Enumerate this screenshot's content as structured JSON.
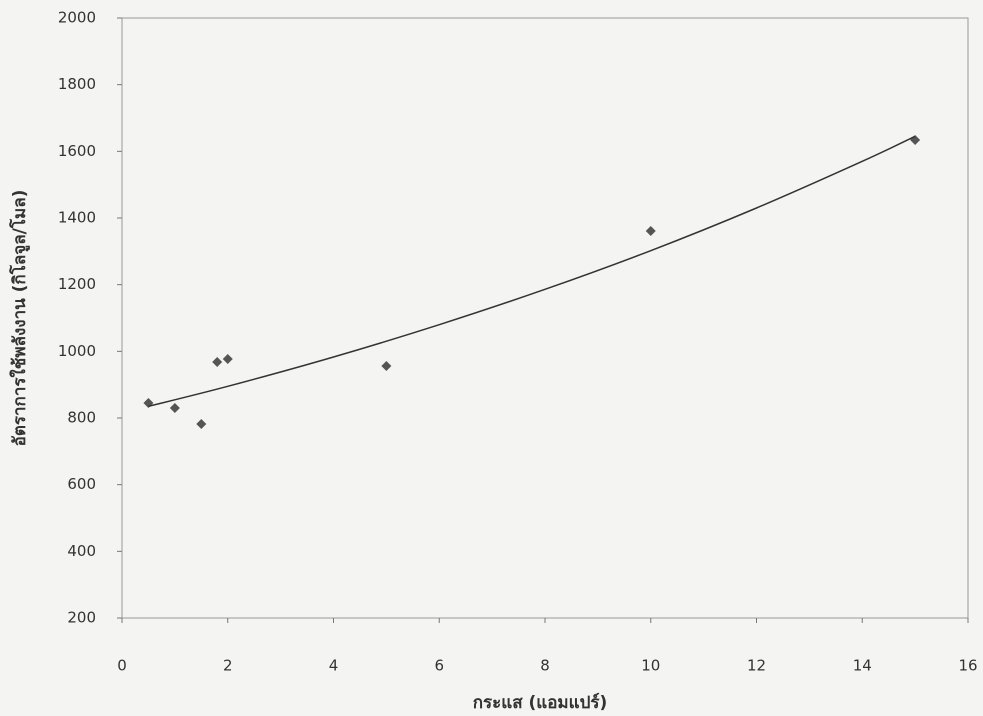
{
  "chart_data": {
    "type": "scatter",
    "x_label": "กระแส (แอมแปร์)",
    "y_label": "อัตราการใช้พลังงาน (กิโลจูล/โมล)",
    "series": [
      {
        "type": "scatter",
        "color": "#555555",
        "x": [
          0.5,
          1,
          1.5,
          1.8,
          2,
          5,
          10,
          15
        ],
        "values": [
          845,
          830,
          782,
          968,
          977,
          956,
          1361,
          1634
        ]
      },
      {
        "type": "line",
        "color": "#333333",
        "x": [
          0.5,
          2,
          4,
          6,
          8,
          10,
          12,
          14,
          15
        ],
        "values": [
          835,
          895,
          983,
          1080,
          1186,
          1302,
          1430,
          1570,
          1645
        ]
      }
    ],
    "xlim": [
      0,
      16
    ],
    "xticks": [
      0,
      2,
      4,
      6,
      8,
      10,
      12,
      14,
      16
    ],
    "ylim": [
      200,
      2000
    ],
    "yticks": [
      200,
      400,
      600,
      800,
      1000,
      1200,
      1400,
      1600,
      1800,
      2000
    ],
    "grid": false
  }
}
